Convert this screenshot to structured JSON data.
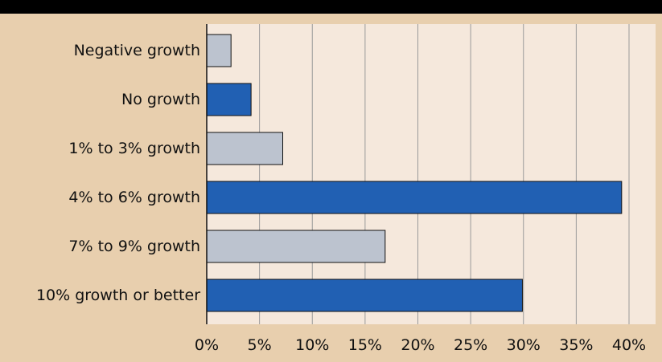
{
  "chart_data": {
    "type": "bar",
    "orientation": "horizontal",
    "title": "",
    "xlabel": "",
    "ylabel": "",
    "categories": [
      "Negative growth",
      "No growth",
      "1% to 3% growth",
      "4% to 6% growth",
      "7% to 9% growth",
      "10% growth or better"
    ],
    "values": [
      2.3,
      4.2,
      7.2,
      39.3,
      16.9,
      29.9
    ],
    "bar_colors": [
      "#bcc3cf",
      "#2160b3",
      "#bcc3cf",
      "#2160b3",
      "#bcc3cf",
      "#2160b3"
    ],
    "xlim": [
      0,
      40
    ],
    "xticks": [
      0,
      5,
      10,
      15,
      20,
      25,
      30,
      35,
      40
    ],
    "tick_labels": [
      "0%",
      "5%",
      "10%",
      "15%",
      "20%",
      "25%",
      "30%",
      "35%",
      "40%"
    ],
    "grid": true,
    "legend": "none"
  },
  "colors": {
    "page_background": "#e8cfae",
    "plot_background": "#f5e8dc",
    "top_band": "#000000",
    "gridline": "#9a9a9a",
    "axis": "#111111",
    "bar_outline": "#111111"
  }
}
